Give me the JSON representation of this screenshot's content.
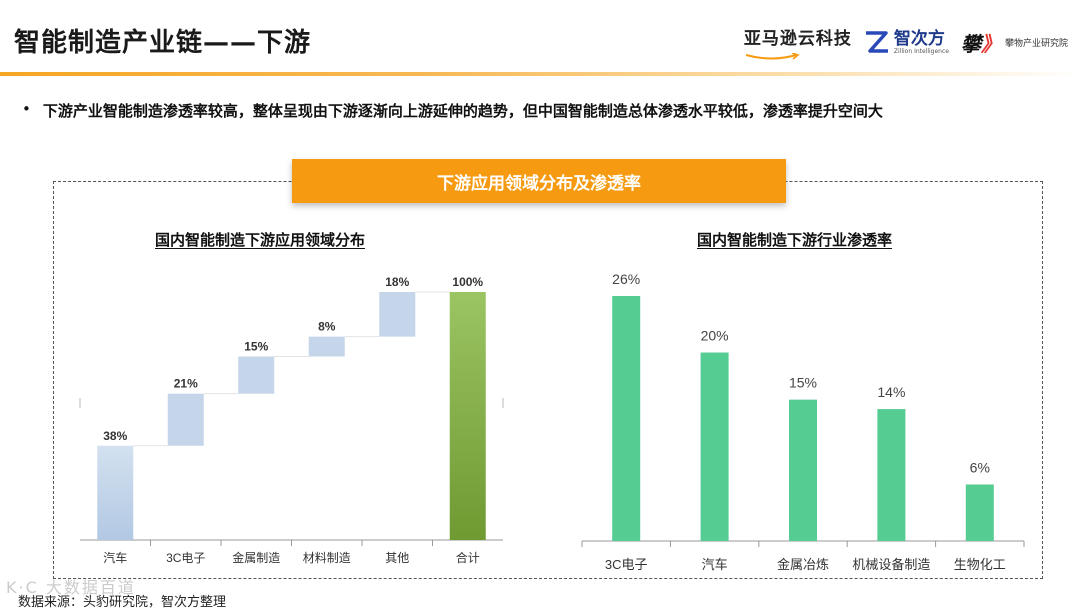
{
  "header": {
    "title": "智能制造产业链——下游",
    "logos": {
      "aws_text": "亚马逊云科技",
      "zhi_text": "智次方",
      "zhi_sub": "Zillion Intelligence",
      "pan_text": "攀物产业研究院"
    }
  },
  "bullet": "下游产业智能制造渗透率较高，整体呈现由下游逐渐向上游延伸的趋势，但中国智能制造总体渗透水平较低，渗透率提升空间大",
  "banner": "下游应用领域分布及渗透率",
  "colors": {
    "accent": "#f59a11",
    "waterfall_bar": "#c5d6ea",
    "total_bar": "#84b043",
    "green_bar": "#55cc92"
  },
  "chart_data": [
    {
      "type": "bar",
      "subtype": "waterfall",
      "title": "国内智能制造下游应用领域分布",
      "categories": [
        "汽车",
        "3C电子",
        "金属制造",
        "材料制造",
        "其他",
        "合计"
      ],
      "values": [
        38,
        21,
        15,
        8,
        18,
        100
      ],
      "data_labels": [
        "38%",
        "21%",
        "15%",
        "8%",
        "18%",
        "100%"
      ],
      "ylim": [
        0,
        100
      ],
      "grid": false
    },
    {
      "type": "bar",
      "title": "国内智能制造下游行业渗透率",
      "categories": [
        "3C电子",
        "汽车",
        "金属冶炼",
        "机械设备制造",
        "生物化工"
      ],
      "values": [
        26,
        20,
        15,
        14,
        6
      ],
      "data_labels": [
        "26%",
        "20%",
        "15%",
        "14%",
        "6%"
      ],
      "ylim": [
        0,
        30
      ],
      "grid": false
    }
  ],
  "source": "数据来源：头豹研究院，智次方整理",
  "watermark": "K·C 大数据百道"
}
